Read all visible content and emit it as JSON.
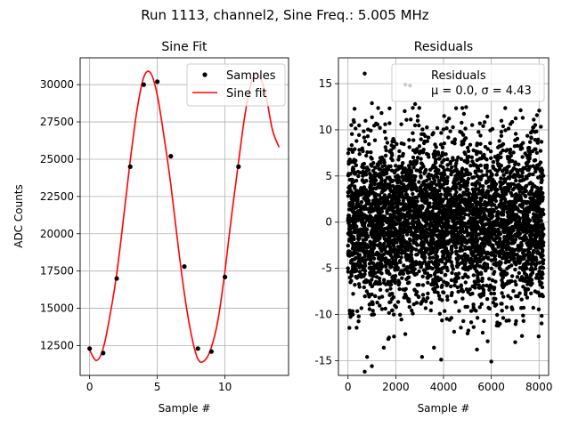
{
  "suptitle": "Run 1113, channel2, Sine Freq.: 5.005 MHz",
  "chart_data": [
    {
      "type": "scatter",
      "title": "Sine Fit",
      "xlabel": "Sample #",
      "ylabel": "ADC Counts",
      "xlim": [
        -0.7,
        14.7
      ],
      "ylim": [
        10500,
        31800
      ],
      "xticks": [
        0,
        5,
        10
      ],
      "yticks": [
        12500,
        15000,
        17500,
        20000,
        22500,
        25000,
        27500,
        30000
      ],
      "grid": true,
      "legend_position": "top-right",
      "series": [
        {
          "name": "Samples",
          "style": "points",
          "color": "#000000",
          "x": [
            0,
            1,
            2,
            3,
            4,
            5,
            6,
            7,
            8,
            9,
            10,
            11
          ],
          "y": [
            12300,
            12000,
            17000,
            24500,
            30000,
            30200,
            25200,
            17800,
            12300,
            12100,
            17100,
            24500
          ]
        },
        {
          "name": "Sine fit",
          "style": "line",
          "color": "#ff0000",
          "x": [
            0,
            0.5,
            1,
            1.5,
            2,
            2.5,
            3,
            3.5,
            4,
            4.5,
            5,
            5.5,
            6,
            6.5,
            7,
            7.5,
            8,
            8.5,
            9,
            9.5,
            10,
            10.5,
            11,
            11.5,
            12,
            12.5,
            13,
            13.5,
            14
          ],
          "y": [
            12200,
            11500,
            12300,
            14500,
            17300,
            21000,
            24900,
            28300,
            30500,
            30800,
            29300,
            26500,
            23300,
            19500,
            16000,
            13300,
            11600,
            11500,
            12400,
            14300,
            17500,
            21300,
            24800,
            28100,
            30300,
            30600,
            29400,
            27000,
            25800
          ]
        }
      ]
    },
    {
      "type": "scatter",
      "title": "Residuals",
      "xlabel": "Sample #",
      "ylabel": "",
      "xlim": [
        -400,
        8400
      ],
      "ylim": [
        -16.6,
        17.8
      ],
      "xticks": [
        0,
        2000,
        4000,
        6000,
        8000
      ],
      "yticks": [
        -15,
        -10,
        -5,
        0,
        5,
        10,
        15
      ],
      "grid": true,
      "legend_position": "top-right",
      "legend_label": "Residuals",
      "legend_sub": "μ = 0.0, σ = 4.43",
      "series": [
        {
          "name": "Residuals",
          "style": "points",
          "color": "#000000",
          "n_points": 8192,
          "mean": 0.0,
          "std": 4.43,
          "outliers": [
            [
              700,
              16.1
            ],
            [
              2400,
              14.9
            ],
            [
              2600,
              14.8
            ],
            [
              700,
              -16.2
            ],
            [
              800,
              -14.6
            ],
            [
              1000,
              -15.6
            ],
            [
              3100,
              -14.6
            ],
            [
              3900,
              -14.9
            ],
            [
              6000,
              -15.1
            ],
            [
              5400,
              -13.8
            ],
            [
              1500,
              -13.6
            ],
            [
              3600,
              -13.6
            ],
            [
              7000,
              -13.0
            ]
          ]
        }
      ]
    }
  ]
}
